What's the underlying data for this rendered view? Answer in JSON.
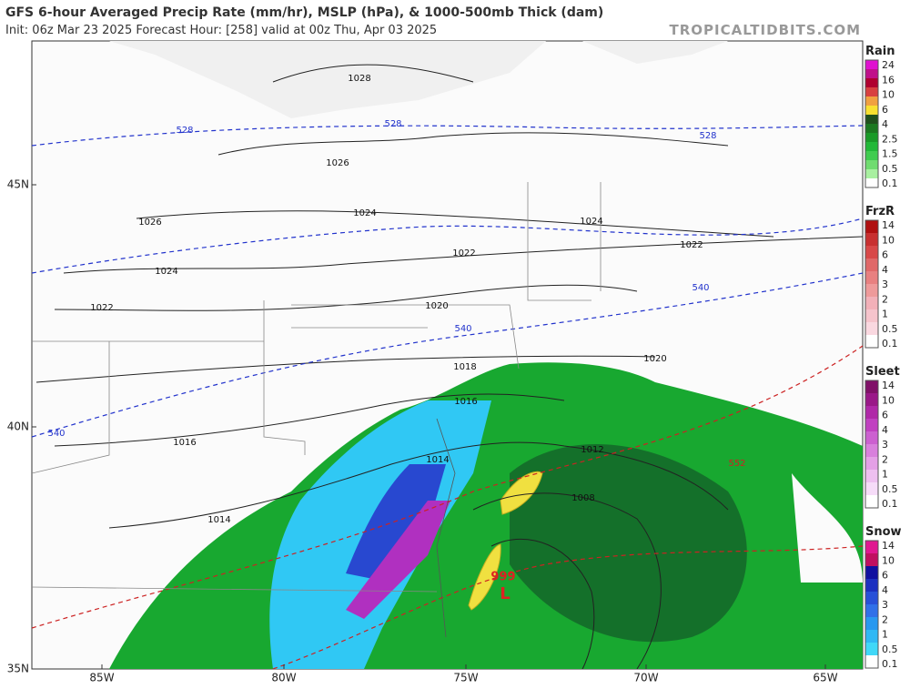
{
  "header": {
    "title": "GFS 6-hour Averaged Precip Rate (mm/hr), MSLP (hPa), & 1000-500mb Thick (dam)",
    "subtitle": "Init: 06z Mar 23 2025   Forecast Hour: [258]   valid at 00z Thu, Apr 03 2025",
    "site": "TROPICALTIDBITS.COM"
  },
  "axes": {
    "lat_labels": [
      "45N",
      "40N",
      "35N"
    ],
    "lon_labels": [
      "85W",
      "80W",
      "75W",
      "70W",
      "65W"
    ]
  },
  "map_labels": {
    "isobars": [
      1028,
      1026,
      1024,
      1024,
      1022,
      1026,
      1024,
      1022,
      1022,
      1020,
      1020,
      1018,
      1016,
      1016,
      1014,
      1012,
      1008,
      1014
    ],
    "thickness": [
      528,
      528,
      528,
      540,
      540,
      540,
      552
    ],
    "low_pressure": 999,
    "low_symbol": "L"
  },
  "legends": [
    {
      "title": "Rain",
      "labels": [
        24,
        16,
        10,
        6,
        4,
        2.5,
        1.5,
        0.5,
        0.1
      ],
      "colors": [
        "#e010d0",
        "#c0108a",
        "#b00030",
        "#d84040",
        "#f0a040",
        "#f8e030",
        "#20501c",
        "#1c7820",
        "#1a9a28",
        "#22b838",
        "#40cc50",
        "#70dc70",
        "#a8f0a0",
        "#ffffff"
      ]
    },
    {
      "title": "FrzR",
      "labels": [
        14,
        10,
        6,
        4,
        3,
        2,
        1,
        0.5,
        0.1
      ],
      "colors": [
        "#b01010",
        "#c83030",
        "#d84848",
        "#e06868",
        "#e88080",
        "#ee9a9a",
        "#f2b0b8",
        "#f6c4cc",
        "#fad8e0",
        "#ffffff"
      ]
    },
    {
      "title": "Sleet",
      "labels": [
        14,
        10,
        6,
        4,
        3,
        2,
        1,
        0.5,
        0.1
      ],
      "colors": [
        "#801068",
        "#9a1888",
        "#b028a8",
        "#c040c0",
        "#cc60d0",
        "#d880dc",
        "#e4a0e6",
        "#eec0f0",
        "#f6dcf8",
        "#ffffff"
      ]
    },
    {
      "title": "Snow",
      "labels": [
        14,
        10,
        6,
        4,
        3,
        2,
        1,
        0.5,
        0.1
      ],
      "colors": [
        "#e01890",
        "#c01060",
        "#1010a0",
        "#1c30c0",
        "#2850d8",
        "#3070e8",
        "#2898f0",
        "#30b8f4",
        "#40d8f8",
        "#ffffff"
      ]
    }
  ]
}
